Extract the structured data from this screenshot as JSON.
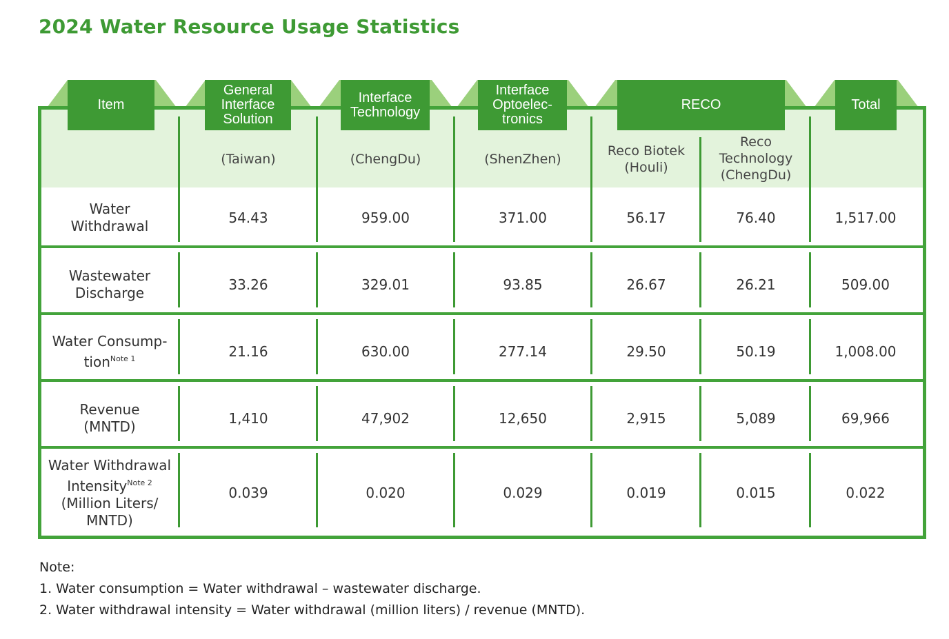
{
  "title": "2024 Water Resource Usage Statistics",
  "colors": {
    "brand_green": "#3e9a34",
    "header_tint": "#e3f3dc",
    "wing_green": "#9bd07c"
  },
  "header": {
    "item": "Item",
    "gis": "General Interface Solution",
    "it": "Interface Technology",
    "io": "Interface Optoelec-tronics",
    "reco": "RECO",
    "total": "Total"
  },
  "subheader": {
    "gis": "(Taiwan)",
    "it": "(ChengDu)",
    "io": "(ShenZhen)",
    "reco_biotek_1": "Reco Biotek",
    "reco_biotek_2": "(Houli)",
    "reco_tech_1": "Reco",
    "reco_tech_2": "Technology",
    "reco_tech_3": "(ChengDu)"
  },
  "rows": [
    {
      "label_1": "Water",
      "label_2": "Withdrawal",
      "values": [
        "54.43",
        "959.00",
        "371.00",
        "56.17",
        "76.40",
        "1,517.00"
      ]
    },
    {
      "label_1": "Wastewater",
      "label_2": "Discharge",
      "values": [
        "33.26",
        "329.01",
        "93.85",
        "26.67",
        "26.21",
        "509.00"
      ]
    },
    {
      "label_1": "Water Consump-",
      "label_2": "tion",
      "note": "Note 1",
      "values": [
        "21.16",
        "630.00",
        "277.14",
        "29.50",
        "50.19",
        "1,008.00"
      ]
    },
    {
      "label_1": "Revenue",
      "label_2": "(MNTD)",
      "values": [
        "1,410",
        "47,902",
        "12,650",
        "2,915",
        "5,089",
        "69,966"
      ]
    },
    {
      "label_1": "Water Withdrawal",
      "label_2": "Intensity",
      "note": "Note 2",
      "label_3": "(Million Liters/",
      "label_4": "MNTD)",
      "values": [
        "0.039",
        "0.020",
        "0.029",
        "0.019",
        "0.015",
        "0.022"
      ]
    }
  ],
  "notes": {
    "heading": "Note:",
    "n1": "1. Water consumption = Water withdrawal – wastewater discharge.",
    "n2": "2. Water withdrawal intensity = Water withdrawal (million liters) / revenue (MNTD)."
  }
}
